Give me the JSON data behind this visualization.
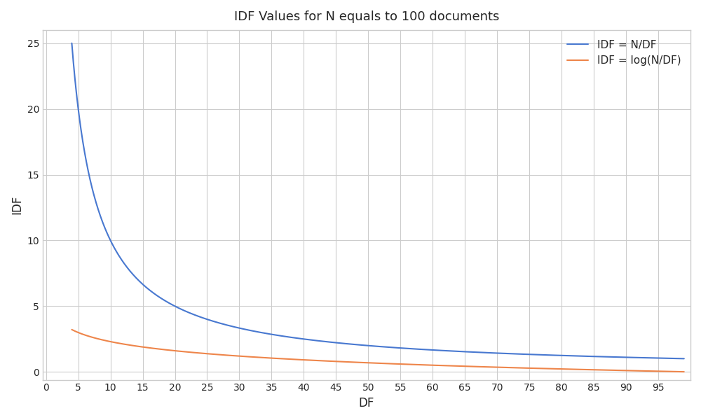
{
  "title": "IDF Values for N equals to 100 documents",
  "xlabel": "DF",
  "ylabel": "IDF",
  "N": 100,
  "df_start": 4,
  "df_end": 99,
  "df_num": 2000,
  "x_ticks": [
    0,
    5,
    10,
    15,
    20,
    25,
    30,
    35,
    40,
    45,
    50,
    55,
    60,
    65,
    70,
    75,
    80,
    85,
    90,
    95
  ],
  "y_ticks": [
    0,
    5,
    10,
    15,
    20,
    25
  ],
  "ylim": [
    -0.6,
    26
  ],
  "xlim": [
    -0.5,
    100
  ],
  "line1_label": "IDF = N/DF",
  "line2_label": "IDF = log(N/DF)",
  "line1_color": "#4878d0",
  "line2_color": "#ee854a",
  "grid_color": "#d3d3d3",
  "axes_face_color": "#f0f0f0",
  "figure_face_color": "#ffffff",
  "title_fontsize": 13,
  "label_fontsize": 12,
  "tick_fontsize": 10,
  "legend_fontsize": 11,
  "figure_width": 10,
  "figure_height": 6,
  "dpi": 100
}
